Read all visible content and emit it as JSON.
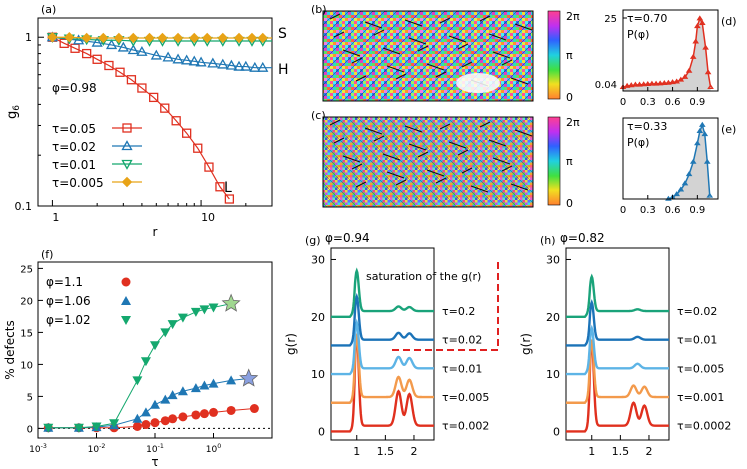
{
  "colors": {
    "red": "#e03020",
    "blue": "#1f77b4",
    "green": "#14a86e",
    "orange": "#e8a317",
    "teal": "#119e7a",
    "g_red": "#e0301e",
    "g_orange": "#f39a4c",
    "g_lblue": "#5db4e6",
    "g_dblue": "#1b73b8",
    "g_green": "#1aa37a",
    "fill_gray": "#d3d3d3"
  },
  "chart_data": [
    {
      "panel": "(a)",
      "type": "line",
      "log_x": true,
      "log_y": true,
      "xlabel": "r",
      "ylabel": "g6",
      "x_ticks": [
        "1",
        "10"
      ],
      "y_ticks": [
        "1",
        "0.1"
      ],
      "xlim": [
        0.8,
        30
      ],
      "ylim": [
        0.1,
        1.3
      ],
      "annotation": "φ=0.98",
      "end_labels": [
        "S",
        "H",
        "L"
      ],
      "series": [
        {
          "name": "τ=0.05",
          "marker": "square",
          "x": [
            1,
            1.2,
            1.42,
            1.7,
            2,
            2.4,
            2.85,
            3.4,
            4,
            4.8,
            5.7,
            6.8,
            8,
            9.5,
            11.3,
            13.4,
            15.5
          ],
          "y": [
            1,
            0.92,
            0.86,
            0.8,
            0.74,
            0.68,
            0.62,
            0.56,
            0.5,
            0.44,
            0.38,
            0.32,
            0.27,
            0.22,
            0.17,
            0.13,
            0.11
          ]
        },
        {
          "name": "τ=0.02",
          "marker": "triangle-up",
          "x": [
            1,
            1.5,
            2,
            2.5,
            3,
            3.5,
            4,
            5,
            6,
            7,
            8,
            9,
            10,
            12,
            14,
            16,
            18,
            20,
            23,
            26,
            30
          ],
          "y": [
            1,
            0.96,
            0.93,
            0.9,
            0.87,
            0.84,
            0.82,
            0.78,
            0.76,
            0.74,
            0.73,
            0.72,
            0.71,
            0.7,
            0.69,
            0.68,
            0.67,
            0.67,
            0.66,
            0.66,
            0.66
          ]
        },
        {
          "name": "τ=0.01",
          "marker": "triangle-down",
          "x": [
            1,
            1.3,
            1.7,
            2.2,
            2.8,
            3.5,
            4.5,
            5.5,
            7,
            9,
            11,
            14,
            18,
            22,
            26,
            30
          ],
          "y": [
            1,
            0.98,
            0.97,
            0.96,
            0.96,
            0.95,
            0.95,
            0.95,
            0.95,
            0.95,
            0.95,
            0.95,
            0.95,
            0.95,
            0.95,
            0.95
          ]
        },
        {
          "name": "τ=0.005",
          "marker": "diamond",
          "x": [
            1,
            1.3,
            1.7,
            2.2,
            2.8,
            3.5,
            4.5,
            5.5,
            7,
            9,
            11,
            14,
            18,
            22,
            26,
            30
          ],
          "y": [
            1,
            1,
            0.99,
            0.99,
            0.99,
            0.99,
            0.99,
            0.99,
            0.99,
            0.99,
            0.99,
            0.99,
            0.99,
            0.99,
            0.99,
            0.99
          ]
        }
      ]
    },
    {
      "panel": "(b)",
      "type": "heatmap",
      "colorbar_ticks": [
        "2π",
        "π",
        "0"
      ]
    },
    {
      "panel": "(c)",
      "type": "heatmap",
      "colorbar_ticks": [
        "2π",
        "π",
        "0"
      ]
    },
    {
      "panel": "(d)",
      "type": "area",
      "title_line": "τ=0.70",
      "label": "P(φ)",
      "x_ticks": [
        "0",
        "0.3",
        "0.6",
        "0.9"
      ],
      "y_ticks": [
        "25",
        "0.04"
      ],
      "x": [
        0,
        0.05,
        0.1,
        0.15,
        0.2,
        0.25,
        0.3,
        0.35,
        0.4,
        0.45,
        0.5,
        0.55,
        0.6,
        0.65,
        0.7,
        0.75,
        0.8,
        0.85,
        0.88,
        0.9,
        0.93,
        0.96,
        1.0,
        1.03,
        1.06
      ],
      "y": [
        1.2,
        1.6,
        1.8,
        2.0,
        2.0,
        2.1,
        2.2,
        2.3,
        2.3,
        2.4,
        2.5,
        2.6,
        2.8,
        3.0,
        3.6,
        4.5,
        6.5,
        11,
        16,
        21,
        23.5,
        22,
        14,
        6,
        1.2
      ]
    },
    {
      "panel": "(e)",
      "type": "area",
      "title_line": "τ=0.33",
      "label": "P(φ)",
      "x_ticks": [
        "0",
        "0.3",
        "0.6",
        "0.9"
      ],
      "x": [
        0.55,
        0.6,
        0.65,
        0.7,
        0.75,
        0.8,
        0.85,
        0.9,
        0.93,
        0.96,
        0.99,
        1.02,
        1.05
      ],
      "y": [
        0,
        0.5,
        1.5,
        3,
        5,
        8,
        12,
        18,
        22,
        24,
        21,
        12,
        1
      ]
    },
    {
      "panel": "(f)",
      "type": "line",
      "log_x": true,
      "xlabel": "τ",
      "ylabel": "% defects",
      "x_ticks": [
        "10-3",
        "10-2",
        "10-1",
        "100"
      ],
      "y_ticks": [
        "0",
        "5",
        "10",
        "15",
        "20",
        "25"
      ],
      "xlim": [
        0.001,
        10
      ],
      "ylim": [
        -1.5,
        26
      ],
      "series": [
        {
          "name": "φ=1.1",
          "marker": "circle",
          "x": [
            0.0015,
            0.005,
            0.01,
            0.02,
            0.05,
            0.07,
            0.1,
            0.15,
            0.2,
            0.3,
            0.5,
            0.7,
            1,
            2,
            5
          ],
          "y": [
            0.1,
            0.1,
            0.1,
            0.1,
            0.3,
            0.6,
            0.9,
            1.2,
            1.5,
            1.8,
            2.1,
            2.3,
            2.5,
            2.8,
            3.1
          ]
        },
        {
          "name": "φ=1.06",
          "marker": "triangle-up",
          "x": [
            0.0015,
            0.005,
            0.01,
            0.02,
            0.05,
            0.07,
            0.1,
            0.15,
            0.2,
            0.3,
            0.5,
            0.7,
            1,
            2,
            4
          ],
          "y": [
            0.1,
            0.1,
            0.2,
            0.5,
            1.5,
            2.5,
            3.7,
            4.5,
            5.2,
            5.8,
            6.3,
            6.7,
            7.0,
            7.5,
            7.8
          ]
        },
        {
          "name": "φ=1.02",
          "marker": "triangle-down",
          "x": [
            0.0015,
            0.005,
            0.01,
            0.02,
            0.05,
            0.07,
            0.1,
            0.15,
            0.2,
            0.3,
            0.5,
            0.7,
            1,
            2
          ],
          "y": [
            0.1,
            0.1,
            0.3,
            0.8,
            7.5,
            10.5,
            13,
            15,
            16.3,
            17.3,
            18.2,
            18.6,
            18.9,
            19.5
          ]
        }
      ]
    },
    {
      "panel": "(g)",
      "type": "line",
      "title": "φ=0.94",
      "xlabel": "",
      "ylabel": "g(r)",
      "x_ticks": [
        "1",
        "1.5",
        "2"
      ],
      "y_ticks": [
        "0",
        "10",
        "20",
        "30"
      ],
      "xlim": [
        0.55,
        2.35
      ],
      "ylim": [
        -1.5,
        32
      ],
      "annotation": "saturation of the g(r)",
      "series": [
        {
          "name": "τ=0.002",
          "offset": 0,
          "peaks": [
            [
              1.0,
              17
            ],
            [
              1.73,
              7
            ],
            [
              1.92,
              6.5
            ]
          ]
        },
        {
          "name": "τ=0.005",
          "offset": 5,
          "peaks": [
            [
              1.0,
              12
            ],
            [
              1.73,
              4.5
            ],
            [
              1.92,
              4
            ]
          ]
        },
        {
          "name": "τ=0.01",
          "offset": 10,
          "peaks": [
            [
              1.0,
              9
            ],
            [
              1.73,
              3
            ],
            [
              1.92,
              2.8
            ]
          ]
        },
        {
          "name": "τ=0.02",
          "offset": 15,
          "peaks": [
            [
              1.0,
              8.5
            ],
            [
              1.73,
              2.2
            ],
            [
              1.92,
              2.1
            ]
          ]
        },
        {
          "name": "τ=0.2",
          "offset": 20,
          "peaks": [
            [
              1.0,
              8
            ],
            [
              1.73,
              1.8
            ],
            [
              1.92,
              1.7
            ]
          ]
        }
      ]
    },
    {
      "panel": "(h)",
      "type": "line",
      "title": "φ=0.82",
      "xlabel": "",
      "ylabel": "g(r)",
      "x_ticks": [
        "1",
        "1.5",
        "2"
      ],
      "y_ticks": [
        "0",
        "10",
        "20",
        "30"
      ],
      "xlim": [
        0.55,
        2.35
      ],
      "ylim": [
        -1.5,
        32
      ],
      "series": [
        {
          "name": "τ=0.0002",
          "offset": 0,
          "peaks": [
            [
              1.0,
              16
            ],
            [
              1.73,
              5
            ],
            [
              1.92,
              4.5
            ]
          ]
        },
        {
          "name": "τ=0.001",
          "offset": 5,
          "peaks": [
            [
              1.0,
              11
            ],
            [
              1.73,
              3
            ],
            [
              1.92,
              2.8
            ]
          ]
        },
        {
          "name": "τ=0.005",
          "offset": 10,
          "peaks": [
            [
              1.0,
              8
            ],
            [
              1.8,
              1.8
            ]
          ]
        },
        {
          "name": "τ=0.01",
          "offset": 15,
          "peaks": [
            [
              1.0,
              7.5
            ],
            [
              1.8,
              1.5
            ]
          ]
        },
        {
          "name": "τ=0.02",
          "offset": 20,
          "peaks": [
            [
              1.0,
              7
            ],
            [
              1.8,
              1.3
            ]
          ]
        }
      ]
    }
  ]
}
